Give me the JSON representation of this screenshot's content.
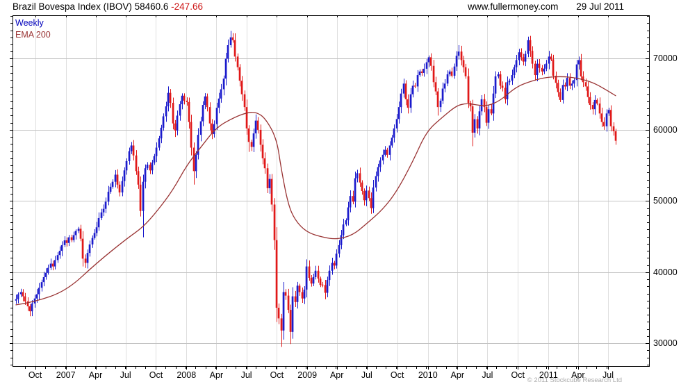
{
  "header": {
    "instrument": "Brazil Bovespa Index (IBOV)",
    "last_price": "58460.6",
    "change": "-247.66",
    "website": "www.fullermoney.com",
    "date": "29 Jul 2011"
  },
  "legend": {
    "series1_label": "Weekly",
    "series2_label": "EMA 200"
  },
  "footer": {
    "copyright": "© 2011 Stockcube Research Ltd"
  },
  "colors": {
    "up_candle": "#1a1acc",
    "down_candle": "#e01818",
    "ema_line": "#993333",
    "grid_vertical": "#dedede",
    "grid_horizontal": "#c4c4c4",
    "axis": "#000000",
    "change_text": "#cc1111",
    "copyright_text": "#aaaaaa"
  },
  "chart_data": {
    "type": "candlestick",
    "title": "Brazil Bovespa Index (IBOV)",
    "timeframe": "Weekly",
    "overlay": "EMA 200",
    "x_start": "Aug 2006",
    "x_end": "29 Jul 2011",
    "grid": true,
    "legend_position": "top-left",
    "y_axis_side": "right",
    "y_range": [
      26800,
      76100
    ],
    "y_major_ticks": [
      30000,
      40000,
      50000,
      60000,
      70000
    ],
    "y_minor_step": 1000,
    "month_start_week": 4.0,
    "weeks_per_month": 4.345,
    "x_ticks": [
      {
        "label": "Oct",
        "week": 8.3
      },
      {
        "label": "2007",
        "week": 21.6
      },
      {
        "label": "Apr",
        "week": 34.5
      },
      {
        "label": "Jul",
        "week": 47.5
      },
      {
        "label": "Oct",
        "week": 60.7
      },
      {
        "label": "2008",
        "week": 73.9
      },
      {
        "label": "Apr",
        "week": 86.9
      },
      {
        "label": "Jul",
        "week": 99.9
      },
      {
        "label": "Oct",
        "week": 113.1
      },
      {
        "label": "2009",
        "week": 126.3
      },
      {
        "label": "Apr",
        "week": 139.1
      },
      {
        "label": "Jul",
        "week": 152.1
      },
      {
        "label": "Oct",
        "week": 165.3
      },
      {
        "label": "2010",
        "week": 178.6
      },
      {
        "label": "Apr",
        "week": 191.4
      },
      {
        "label": "Jul",
        "week": 204.4
      },
      {
        "label": "Oct",
        "week": 217.6
      },
      {
        "label": "2011",
        "week": 230.9
      },
      {
        "label": "Apr",
        "week": 243.7
      },
      {
        "label": "Jul",
        "week": 256.7
      }
    ],
    "first_open": 36000,
    "weekly_closes": [
      36200,
      36900,
      37200,
      36600,
      35900,
      35200,
      34500,
      35600,
      36300,
      36900,
      37800,
      38600,
      39300,
      39900,
      40600,
      41200,
      40800,
      41700,
      42400,
      43000,
      43800,
      44470,
      44100,
      44900,
      44500,
      45200,
      45800,
      46100,
      44700,
      41900,
      41300,
      42700,
      43900,
      44800,
      45500,
      46300,
      47600,
      48400,
      48900,
      49900,
      51300,
      52000,
      52700,
      53700,
      52300,
      51200,
      52800,
      54300,
      55600,
      57000,
      57800,
      56400,
      54200,
      52300,
      48600,
      52700,
      54600,
      55100,
      54300,
      55400,
      56300,
      57500,
      58800,
      60300,
      61900,
      63300,
      65200,
      63800,
      60900,
      59900,
      62000,
      63600,
      64800,
      64100,
      63900,
      61100,
      57500,
      54200,
      56500,
      59300,
      61200,
      63500,
      64700,
      63200,
      60900,
      59400,
      60800,
      63100,
      64400,
      65700,
      67200,
      70000,
      71900,
      73000,
      72600,
      70300,
      68800,
      66900,
      65000,
      63200,
      60200,
      58300,
      57600,
      59500,
      61300,
      60000,
      57900,
      56000,
      54600,
      51800,
      53100,
      49500,
      44500,
      35000,
      33500,
      31800,
      37200,
      36700,
      34700,
      31600,
      36600,
      35800,
      38100,
      37200,
      36300,
      37550,
      40800,
      39200,
      38400,
      39300,
      40200,
      39100,
      38200,
      38183,
      37100,
      38900,
      40200,
      41300,
      40926,
      42600,
      43800,
      45200,
      46700,
      47290,
      49100,
      50700,
      49900,
      53198,
      53900,
      52600,
      51400,
      50100,
      51466,
      50400,
      49000,
      51900,
      53500,
      54766,
      55700,
      56500,
      57200,
      56489,
      57800,
      58900,
      60200,
      61518,
      63200,
      65100,
      66500,
      64300,
      63100,
      65000,
      66200,
      66100,
      67700,
      68200,
      68000,
      68588,
      69500,
      70200,
      69000,
      66700,
      65402,
      63200,
      64100,
      65800,
      66503,
      67800,
      68200,
      67600,
      68900,
      70400,
      71000,
      69800,
      68800,
      67529,
      63800,
      63300,
      59600,
      61500,
      60200,
      62600,
      64300,
      63200,
      61000,
      62900,
      62300,
      65100,
      67515,
      67800,
      66200,
      65900,
      64300,
      66700,
      66900,
      67700,
      68800,
      69800,
      70900,
      70200,
      69600,
      70673,
      72600,
      71100,
      69300,
      67700,
      69300,
      68700,
      68200,
      68600,
      69305,
      70300,
      69900,
      67600,
      66600,
      65300,
      64200,
      66300,
      66100,
      67300,
      66200,
      66500,
      67000,
      69200,
      69800,
      67500,
      66700,
      66100,
      64600,
      63500,
      62900,
      64200,
      63700,
      62300,
      61100,
      60500,
      62300,
      62800,
      60500,
      59800,
      58460.6
    ],
    "high_overrides": {
      "50": 58300,
      "66": 66100,
      "93": 73900,
      "126": 41800,
      "179": 70450,
      "192": 71900,
      "222": 73100,
      "231": 71100,
      "244": 70300
    },
    "low_overrides": {
      "6": 33800,
      "29": 40800,
      "55": 44900,
      "69": 59000,
      "77": 52300,
      "85": 58700,
      "101": 56900,
      "113": 33000,
      "115": 29500,
      "119": 29900,
      "134": 36200,
      "154": 48200,
      "183": 62000,
      "198": 57700,
      "236": 63900,
      "255": 60000,
      "260": 57900
    },
    "ema_points": [
      [
        0,
        35400
      ],
      [
        8,
        35800
      ],
      [
        22,
        37400
      ],
      [
        35,
        41300
      ],
      [
        48,
        44700
      ],
      [
        55,
        46300
      ],
      [
        61,
        48500
      ],
      [
        68,
        51500
      ],
      [
        74,
        55000
      ],
      [
        80,
        57500
      ],
      [
        87,
        60400
      ],
      [
        95,
        61800
      ],
      [
        100,
        62400
      ],
      [
        104,
        62500
      ],
      [
        108,
        61700
      ],
      [
        113,
        58800
      ],
      [
        115,
        54500
      ],
      [
        118,
        49500
      ],
      [
        121,
        47300
      ],
      [
        126,
        45600
      ],
      [
        133,
        44900
      ],
      [
        139,
        44600
      ],
      [
        146,
        45200
      ],
      [
        152,
        46800
      ],
      [
        159,
        48800
      ],
      [
        165,
        51300
      ],
      [
        172,
        55500
      ],
      [
        178,
        59800
      ],
      [
        185,
        61800
      ],
      [
        191,
        63400
      ],
      [
        195,
        63700
      ],
      [
        198,
        63600
      ],
      [
        204,
        63300
      ],
      [
        210,
        64100
      ],
      [
        217,
        66100
      ],
      [
        224,
        66900
      ],
      [
        230,
        67400
      ],
      [
        237,
        67500
      ],
      [
        243,
        67300
      ],
      [
        250,
        66700
      ],
      [
        256,
        65600
      ],
      [
        260,
        64800
      ]
    ]
  }
}
